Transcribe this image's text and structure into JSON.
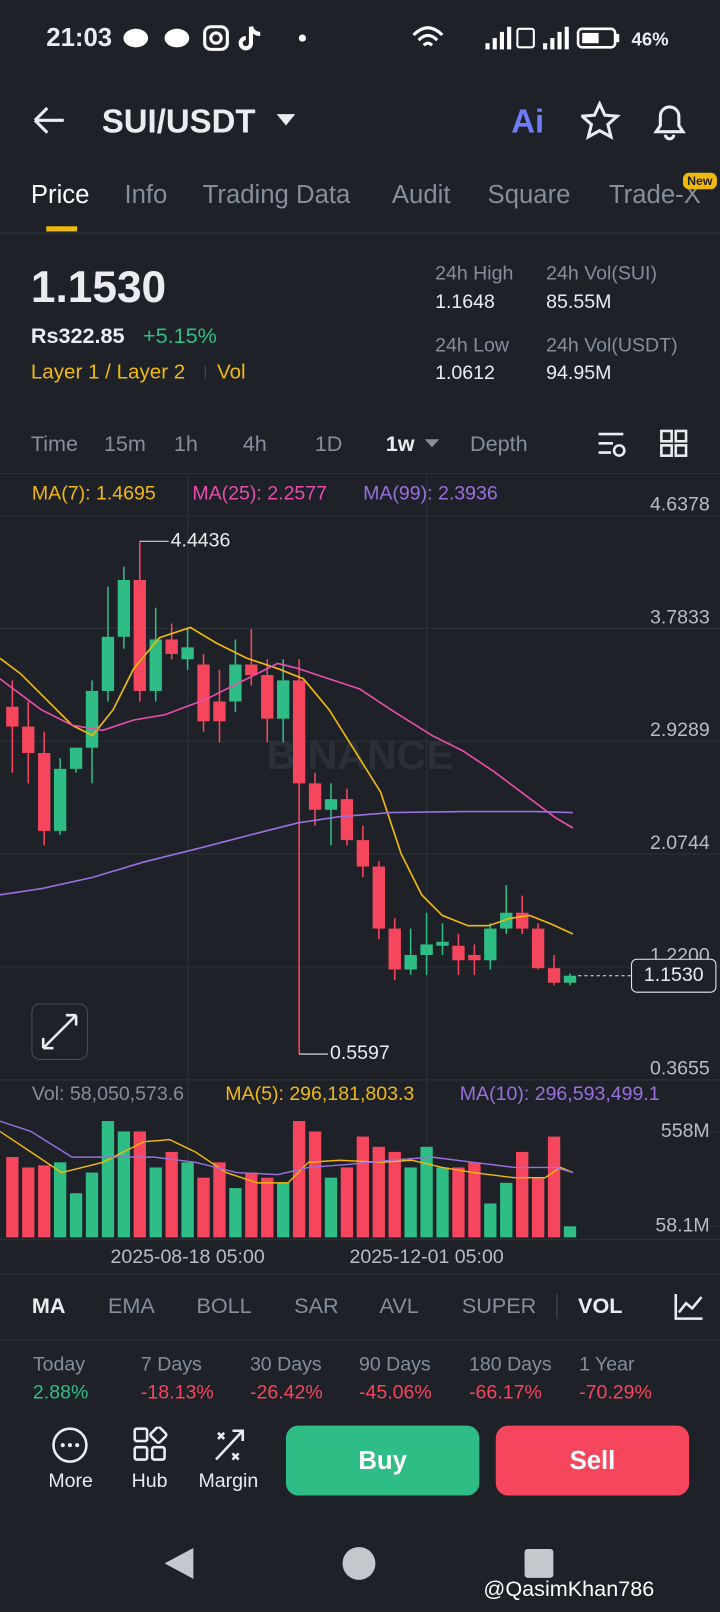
{
  "status_bar": {
    "time": "21:03",
    "battery": "46%"
  },
  "header": {
    "pair": "SUI/USDT",
    "ai": "Ai"
  },
  "tabs": [
    "Price",
    "Info",
    "Trading Data",
    "Audit",
    "Square",
    "Trade-X"
  ],
  "tab_badge": "New",
  "price": {
    "last": "1.1530",
    "fiat": "Rs322.85",
    "change": "+5.15%",
    "tags": [
      "Layer 1 / Layer 2",
      "Vol"
    ]
  },
  "stats": [
    {
      "label": "24h High",
      "value": "1.1648"
    },
    {
      "label": "24h Vol(SUI)",
      "value": "85.55M"
    },
    {
      "label": "24h Low",
      "value": "1.0612"
    },
    {
      "label": "24h Vol(USDT)",
      "value": "94.95M"
    }
  ],
  "intervals": [
    "Time",
    "15m",
    "1h",
    "4h",
    "1D",
    "1w",
    "Depth"
  ],
  "ma_legend": [
    "MA(7): 1.4695",
    "MA(25): 2.2577",
    "MA(99): 2.3936"
  ],
  "vol_legend": [
    "Vol: 58,050,573.6",
    "MA(5): 296,181,803.3",
    "MA(10): 296,593,499.1"
  ],
  "chart_data": {
    "type": "candlestick",
    "watermark": "BINANCE",
    "categories": [
      null,
      null,
      null,
      null,
      null,
      null,
      null,
      null,
      null,
      null,
      null,
      "2025-08-18 05:00",
      null,
      null,
      null,
      null,
      null,
      null,
      null,
      null,
      null,
      null,
      null,
      null,
      null,
      null,
      "2025-12-01 05:00",
      null,
      null,
      null,
      null,
      null,
      null,
      null,
      null,
      null
    ],
    "open": [
      3.19,
      3.04,
      2.84,
      2.25,
      2.72,
      2.88,
      3.31,
      3.72,
      4.15,
      3.31,
      3.7,
      3.55,
      3.51,
      3.23,
      3.23,
      3.51,
      3.43,
      3.1,
      3.39,
      2.61,
      2.41,
      2.49,
      2.18,
      1.98,
      1.51,
      1.2,
      1.31,
      1.38,
      1.38,
      1.31,
      1.27,
      1.51,
      1.63,
      1.51,
      1.21,
      1.1
    ],
    "high": [
      3.39,
      3.23,
      3.0,
      2.8,
      2.88,
      3.39,
      4.1,
      4.25,
      4.4436,
      3.94,
      3.82,
      3.78,
      3.59,
      3.47,
      3.7,
      3.78,
      3.55,
      3.55,
      3.55,
      2.69,
      2.61,
      2.57,
      2.29,
      2.02,
      1.59,
      1.51,
      1.63,
      1.55,
      1.47,
      1.39,
      1.55,
      1.84,
      1.76,
      1.55,
      1.31,
      1.17
    ],
    "low": [
      2.69,
      2.61,
      2.14,
      2.22,
      2.69,
      2.61,
      3.23,
      3.63,
      3.23,
      3.23,
      3.55,
      3.47,
      3.0,
      2.92,
      3.15,
      3.35,
      2.92,
      2.92,
      0.5597,
      2.29,
      2.14,
      2.14,
      1.9,
      1.43,
      1.12,
      1.16,
      1.16,
      1.31,
      1.16,
      1.16,
      1.2,
      1.47,
      1.47,
      1.2,
      1.08,
      1.08
    ],
    "close": [
      3.04,
      2.84,
      2.25,
      2.72,
      2.88,
      3.31,
      3.72,
      4.15,
      3.31,
      3.7,
      3.59,
      3.64,
      3.08,
      3.08,
      3.51,
      3.43,
      3.1,
      3.39,
      2.61,
      2.41,
      2.49,
      2.18,
      1.98,
      1.51,
      1.2,
      1.31,
      1.39,
      1.41,
      1.27,
      1.27,
      1.51,
      1.63,
      1.51,
      1.21,
      1.1,
      1.153
    ],
    "volume": [
      424,
      369,
      380,
      396,
      233,
      342,
      614,
      559,
      559,
      369,
      451,
      396,
      315,
      396,
      260,
      342,
      315,
      288,
      614,
      559,
      315,
      369,
      532,
      478,
      451,
      369,
      478,
      369,
      369,
      396,
      179,
      288,
      451,
      315,
      532,
      58.05
    ],
    "ylim": [
      0.3655,
      4.6378
    ],
    "yticks": [
      4.6378,
      3.7833,
      2.9289,
      2.0744,
      {
        "value": 1.22,
        "label": "1.2200"
      },
      0.3655
    ],
    "vlim": [
      0,
      620
    ],
    "vticks": [
      {
        "value": 558,
        "label": "558M"
      },
      {
        "value": 58.1,
        "label": "58.1M"
      }
    ],
    "up_color": "#2ebd85",
    "down_color": "#f6465d",
    "grid": true
  },
  "indicators": [
    "MA",
    "EMA",
    "BOLL",
    "SAR",
    "AVL",
    "SUPER",
    "VOL"
  ],
  "performance": [
    {
      "label": "Today",
      "value": "2.88%"
    },
    {
      "label": "7 Days",
      "value": "-18.13%"
    },
    {
      "label": "30 Days",
      "value": "-26.42%"
    },
    {
      "label": "90 Days",
      "value": "-45.06%"
    },
    {
      "label": "180 Days",
      "value": "-66.17%"
    },
    {
      "label": "1 Year",
      "value": "-70.29%"
    }
  ],
  "actions": [
    "More",
    "Hub",
    "Margin"
  ],
  "buy": "Buy",
  "sell": "Sell",
  "watermark": "@QasimKhan786"
}
